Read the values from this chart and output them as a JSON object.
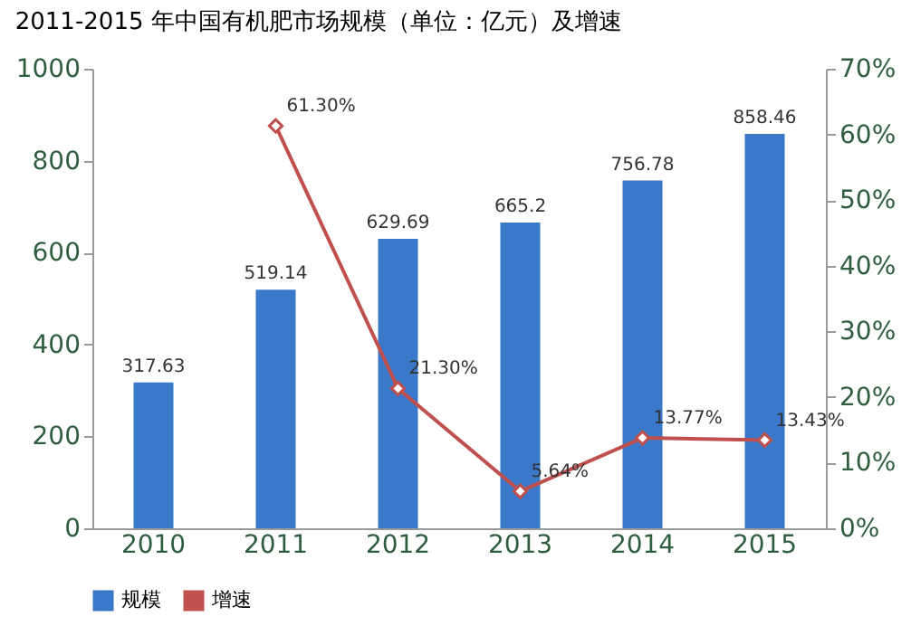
{
  "chart_data": {
    "type": "bar",
    "title": "2011-2015 年中国有机肥市场规模（单位：亿元）及增速",
    "categories": [
      "2010",
      "2011",
      "2012",
      "2013",
      "2014",
      "2015"
    ],
    "series": [
      {
        "name": "规模",
        "color": "#3a78c9",
        "values": [
          317.63,
          519.14,
          629.69,
          665.2,
          756.78,
          858.46
        ],
        "value_labels": [
          "317.63",
          "519.14",
          "629.69",
          "665.2",
          "756.78",
          "858.46"
        ]
      },
      {
        "name": "增速",
        "type": "line",
        "axis": "y2",
        "color": "#c0504d",
        "marker": "diamond",
        "values": [
          null,
          61.3,
          21.3,
          5.64,
          13.77,
          13.43
        ],
        "value_labels": [
          null,
          "61.30%",
          "21.30%",
          "5.64%",
          "13.77%",
          "13.43%"
        ]
      }
    ],
    "ylim": [
      0,
      1000
    ],
    "yticks": [
      0,
      200,
      400,
      600,
      800,
      1000
    ],
    "y2lim": [
      0,
      70
    ],
    "y2ticks": [
      {
        "value": 0,
        "label": "0%"
      },
      {
        "value": 10,
        "label": "10%"
      },
      {
        "value": 20,
        "label": "20%"
      },
      {
        "value": 30,
        "label": "30%"
      },
      {
        "value": 40,
        "label": "40%"
      },
      {
        "value": 50,
        "label": "50%"
      },
      {
        "value": 60,
        "label": "60%"
      },
      {
        "value": 70,
        "label": "70%"
      }
    ],
    "grid": false,
    "legend": "bottom"
  }
}
